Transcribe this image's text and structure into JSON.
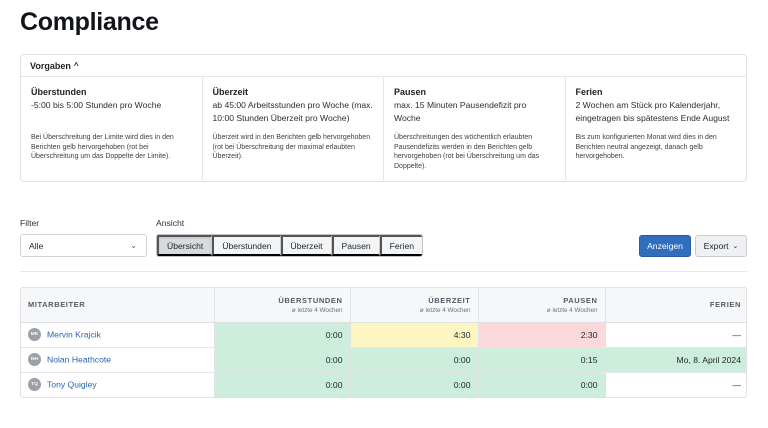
{
  "page": {
    "title": "Compliance"
  },
  "rules": {
    "header_label": "Vorgaben",
    "columns": [
      {
        "title": "Überstunden",
        "desc": "-5:00 bis 5:00 Stunden pro Woche",
        "note": "Bei Überschreitung der Limite wird dies in den Berichten gelb hervorgehoben (rot bei Überschreitung um das Doppelte der Limite)."
      },
      {
        "title": "Überzeit",
        "desc": "ab 45:00 Arbeitsstunden pro Woche (max. 10:00 Stunden Überzeit pro Woche)",
        "note": "Überzeit wird in den Berichten gelb hervorgehoben (rot bei Überschreitung der maximal erlaubten Überzeit)."
      },
      {
        "title": "Pausen",
        "desc": "max. 15 Minuten Pausendefizit pro Woche",
        "note": "Überschreitungen des wöchentlich erlaubten Pausendefizits werden in den Berichten gelb hervorgehoben (rot bei Überschreitung um das Doppelte)."
      },
      {
        "title": "Ferien",
        "desc": "2 Wochen am Stück pro Kalenderjahr, eingetragen bis spätestens Ende August",
        "note": "Bis zum konfigurierten Monat wird dies in den Berichten neutral angezeigt, danach gelb hervorgehoben."
      }
    ]
  },
  "filters": {
    "filter_label": "Filter",
    "filter_value": "Alle",
    "view_label": "Ansicht",
    "views": [
      "Übersicht",
      "Überstunden",
      "Überzeit",
      "Pausen",
      "Ferien"
    ],
    "active_view": "Übersicht",
    "show_button": "Anzeigen",
    "export_button": "Export"
  },
  "table": {
    "columns": [
      {
        "label": "MITARBEITER",
        "sub": ""
      },
      {
        "label": "ÜBERSTUNDEN",
        "sub": "⌀ letzte 4 Wochen"
      },
      {
        "label": "ÜBERZEIT",
        "sub": "⌀ letzte 4 Wochen"
      },
      {
        "label": "PAUSEN",
        "sub": "⌀ letzte 4 Wochen"
      },
      {
        "label": "FERIEN",
        "sub": ""
      }
    ],
    "rows": [
      {
        "initials": "MK",
        "name": "Mervin Krajcik",
        "overtime": "0:00",
        "extra": "4:30",
        "breaks": "2:30",
        "vacation": "—",
        "status": {
          "overtime": "ok",
          "extra": "warn",
          "breaks": "bad",
          "vacation": "none"
        }
      },
      {
        "initials": "NH",
        "name": "Nolan Heathcote",
        "overtime": "0:00",
        "extra": "0:00",
        "breaks": "0:15",
        "vacation": "Mo, 8. April 2024",
        "status": {
          "overtime": "ok",
          "extra": "ok",
          "breaks": "ok",
          "vacation": "ok"
        }
      },
      {
        "initials": "TQ",
        "name": "Tony Quigley",
        "overtime": "0:00",
        "extra": "0:00",
        "breaks": "0:00",
        "vacation": "—",
        "status": {
          "overtime": "ok",
          "extra": "ok",
          "breaks": "ok",
          "vacation": "none"
        }
      }
    ]
  },
  "colors": {
    "ok": "#cdeedd",
    "warn": "#fdf6c3",
    "bad": "#fbd9db",
    "primary": "#2f6fbd"
  }
}
